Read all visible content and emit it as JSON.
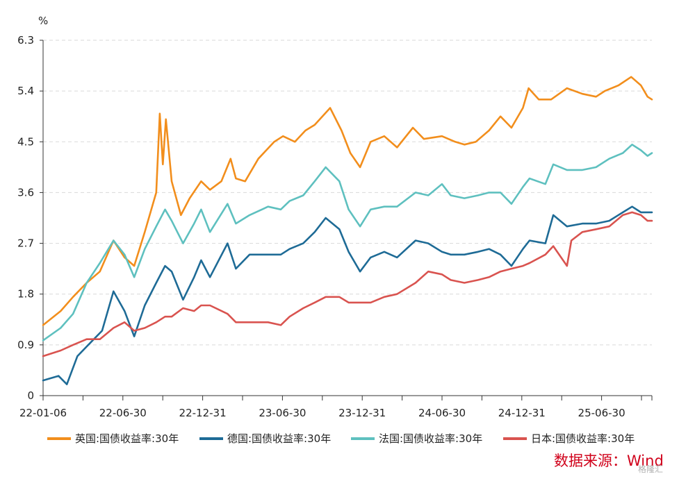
{
  "chart_data": {
    "type": "line",
    "unit_label": "%",
    "ylim": [
      0,
      6.3
    ],
    "yticks": [
      "0",
      "0.9",
      "1.8",
      "2.7",
      "3.6",
      "4.5",
      "5.4",
      "6.3"
    ],
    "xticks": [
      "22-01-06",
      "22-06-30",
      "22-12-31",
      "23-06-30",
      "23-12-31",
      "24-06-30",
      "24-12-31",
      "25-06-30"
    ],
    "xrange": [
      "2022-01-06",
      "2025-10-20"
    ],
    "grid": "horizontal-dashed",
    "legend_position": "bottom",
    "series": [
      {
        "name": "英国:国债收益率:30年",
        "color": "#f28e1c",
        "points": [
          [
            "2022-01-06",
            1.25
          ],
          [
            "2022-02-15",
            1.5
          ],
          [
            "2022-03-15",
            1.75
          ],
          [
            "2022-04-15",
            2.0
          ],
          [
            "2022-05-15",
            2.2
          ],
          [
            "2022-06-15",
            2.75
          ],
          [
            "2022-07-10",
            2.45
          ],
          [
            "2022-08-01",
            2.3
          ],
          [
            "2022-08-25",
            2.9
          ],
          [
            "2022-09-20",
            3.6
          ],
          [
            "2022-09-28",
            5.0
          ],
          [
            "2022-10-05",
            4.1
          ],
          [
            "2022-10-12",
            4.9
          ],
          [
            "2022-10-25",
            3.8
          ],
          [
            "2022-11-15",
            3.2
          ],
          [
            "2022-12-05",
            3.5
          ],
          [
            "2022-12-31",
            3.8
          ],
          [
            "2023-01-20",
            3.65
          ],
          [
            "2023-02-15",
            3.8
          ],
          [
            "2023-03-08",
            4.2
          ],
          [
            "2023-03-20",
            3.85
          ],
          [
            "2023-04-10",
            3.8
          ],
          [
            "2023-05-10",
            4.2
          ],
          [
            "2023-06-15",
            4.5
          ],
          [
            "2023-07-05",
            4.6
          ],
          [
            "2023-08-01",
            4.5
          ],
          [
            "2023-08-25",
            4.7
          ],
          [
            "2023-09-15",
            4.8
          ],
          [
            "2023-10-20",
            5.1
          ],
          [
            "2023-11-15",
            4.7
          ],
          [
            "2023-12-05",
            4.3
          ],
          [
            "2023-12-27",
            4.05
          ],
          [
            "2024-01-20",
            4.5
          ],
          [
            "2024-02-20",
            4.6
          ],
          [
            "2024-03-20",
            4.4
          ],
          [
            "2024-04-25",
            4.75
          ],
          [
            "2024-05-20",
            4.55
          ],
          [
            "2024-06-30",
            4.6
          ],
          [
            "2024-07-30",
            4.5
          ],
          [
            "2024-08-20",
            4.45
          ],
          [
            "2024-09-15",
            4.5
          ],
          [
            "2024-10-15",
            4.7
          ],
          [
            "2024-11-10",
            4.95
          ],
          [
            "2024-12-05",
            4.75
          ],
          [
            "2024-12-31",
            5.1
          ],
          [
            "2025-01-13",
            5.45
          ],
          [
            "2025-02-05",
            5.25
          ],
          [
            "2025-03-05",
            5.25
          ],
          [
            "2025-04-10",
            5.45
          ],
          [
            "2025-05-15",
            5.35
          ],
          [
            "2025-06-15",
            5.3
          ],
          [
            "2025-07-05",
            5.4
          ],
          [
            "2025-08-05",
            5.5
          ],
          [
            "2025-09-03",
            5.65
          ],
          [
            "2025-09-25",
            5.5
          ],
          [
            "2025-10-10",
            5.3
          ],
          [
            "2025-10-20",
            5.25
          ]
        ]
      },
      {
        "name": "德国:国债收益率:30年",
        "color": "#1e6b96",
        "points": [
          [
            "2022-01-06",
            0.27
          ],
          [
            "2022-02-10",
            0.35
          ],
          [
            "2022-03-01",
            0.2
          ],
          [
            "2022-03-25",
            0.7
          ],
          [
            "2022-04-25",
            0.95
          ],
          [
            "2022-05-20",
            1.15
          ],
          [
            "2022-06-15",
            1.85
          ],
          [
            "2022-07-10",
            1.5
          ],
          [
            "2022-08-01",
            1.05
          ],
          [
            "2022-08-25",
            1.6
          ],
          [
            "2022-09-20",
            2.0
          ],
          [
            "2022-10-10",
            2.3
          ],
          [
            "2022-10-25",
            2.2
          ],
          [
            "2022-11-20",
            1.7
          ],
          [
            "2022-12-15",
            2.1
          ],
          [
            "2022-12-31",
            2.4
          ],
          [
            "2023-01-20",
            2.1
          ],
          [
            "2023-03-01",
            2.7
          ],
          [
            "2023-03-20",
            2.25
          ],
          [
            "2023-04-20",
            2.5
          ],
          [
            "2023-06-01",
            2.5
          ],
          [
            "2023-06-30",
            2.5
          ],
          [
            "2023-07-20",
            2.6
          ],
          [
            "2023-08-20",
            2.7
          ],
          [
            "2023-09-15",
            2.9
          ],
          [
            "2023-10-10",
            3.15
          ],
          [
            "2023-11-10",
            2.95
          ],
          [
            "2023-12-01",
            2.55
          ],
          [
            "2023-12-27",
            2.2
          ],
          [
            "2024-01-20",
            2.45
          ],
          [
            "2024-02-20",
            2.55
          ],
          [
            "2024-03-20",
            2.45
          ],
          [
            "2024-05-01",
            2.75
          ],
          [
            "2024-05-30",
            2.7
          ],
          [
            "2024-06-30",
            2.55
          ],
          [
            "2024-07-20",
            2.5
          ],
          [
            "2024-08-20",
            2.5
          ],
          [
            "2024-09-20",
            2.55
          ],
          [
            "2024-10-15",
            2.6
          ],
          [
            "2024-11-10",
            2.5
          ],
          [
            "2024-12-05",
            2.3
          ],
          [
            "2024-12-31",
            2.6
          ],
          [
            "2025-01-15",
            2.75
          ],
          [
            "2025-02-20",
            2.7
          ],
          [
            "2025-03-10",
            3.2
          ],
          [
            "2025-04-10",
            3.0
          ],
          [
            "2025-05-15",
            3.05
          ],
          [
            "2025-06-15",
            3.05
          ],
          [
            "2025-07-15",
            3.1
          ],
          [
            "2025-08-15",
            3.25
          ],
          [
            "2025-09-05",
            3.35
          ],
          [
            "2025-09-25",
            3.25
          ],
          [
            "2025-10-20",
            3.25
          ]
        ]
      },
      {
        "name": "法国:国债收益率:30年",
        "color": "#5ec0bf",
        "points": [
          [
            "2022-01-06",
            0.98
          ],
          [
            "2022-02-15",
            1.2
          ],
          [
            "2022-03-15",
            1.45
          ],
          [
            "2022-04-15",
            2.0
          ],
          [
            "2022-05-15",
            2.35
          ],
          [
            "2022-06-15",
            2.75
          ],
          [
            "2022-07-10",
            2.5
          ],
          [
            "2022-08-01",
            2.1
          ],
          [
            "2022-08-25",
            2.6
          ],
          [
            "2022-09-20",
            3.0
          ],
          [
            "2022-10-10",
            3.3
          ],
          [
            "2022-10-25",
            3.1
          ],
          [
            "2022-11-20",
            2.7
          ],
          [
            "2022-12-15",
            3.05
          ],
          [
            "2022-12-31",
            3.3
          ],
          [
            "2023-01-20",
            2.9
          ],
          [
            "2023-03-01",
            3.4
          ],
          [
            "2023-03-20",
            3.05
          ],
          [
            "2023-04-20",
            3.2
          ],
          [
            "2023-06-01",
            3.35
          ],
          [
            "2023-06-30",
            3.3
          ],
          [
            "2023-07-20",
            3.45
          ],
          [
            "2023-08-20",
            3.55
          ],
          [
            "2023-09-15",
            3.8
          ],
          [
            "2023-10-10",
            4.05
          ],
          [
            "2023-11-10",
            3.8
          ],
          [
            "2023-12-01",
            3.3
          ],
          [
            "2023-12-27",
            3.0
          ],
          [
            "2024-01-20",
            3.3
          ],
          [
            "2024-02-20",
            3.35
          ],
          [
            "2024-03-20",
            3.35
          ],
          [
            "2024-05-01",
            3.6
          ],
          [
            "2024-05-30",
            3.55
          ],
          [
            "2024-06-30",
            3.75
          ],
          [
            "2024-07-20",
            3.55
          ],
          [
            "2024-08-20",
            3.5
          ],
          [
            "2024-09-20",
            3.55
          ],
          [
            "2024-10-15",
            3.6
          ],
          [
            "2024-11-10",
            3.6
          ],
          [
            "2024-12-05",
            3.4
          ],
          [
            "2024-12-31",
            3.7
          ],
          [
            "2025-01-15",
            3.85
          ],
          [
            "2025-02-20",
            3.75
          ],
          [
            "2025-03-10",
            4.1
          ],
          [
            "2025-04-10",
            4.0
          ],
          [
            "2025-05-15",
            4.0
          ],
          [
            "2025-06-15",
            4.05
          ],
          [
            "2025-07-15",
            4.2
          ],
          [
            "2025-08-15",
            4.3
          ],
          [
            "2025-09-05",
            4.45
          ],
          [
            "2025-09-25",
            4.35
          ],
          [
            "2025-10-10",
            4.25
          ],
          [
            "2025-10-20",
            4.3
          ]
        ]
      },
      {
        "name": "日本:国债收益率:30年",
        "color": "#d9534f",
        "points": [
          [
            "2022-01-06",
            0.7
          ],
          [
            "2022-02-15",
            0.8
          ],
          [
            "2022-03-15",
            0.9
          ],
          [
            "2022-04-15",
            1.0
          ],
          [
            "2022-05-15",
            1.0
          ],
          [
            "2022-06-15",
            1.2
          ],
          [
            "2022-07-10",
            1.3
          ],
          [
            "2022-08-01",
            1.15
          ],
          [
            "2022-08-25",
            1.2
          ],
          [
            "2022-09-20",
            1.3
          ],
          [
            "2022-10-10",
            1.4
          ],
          [
            "2022-10-25",
            1.4
          ],
          [
            "2022-11-20",
            1.55
          ],
          [
            "2022-12-15",
            1.5
          ],
          [
            "2022-12-31",
            1.6
          ],
          [
            "2023-01-20",
            1.6
          ],
          [
            "2023-03-01",
            1.45
          ],
          [
            "2023-03-20",
            1.3
          ],
          [
            "2023-04-20",
            1.3
          ],
          [
            "2023-06-01",
            1.3
          ],
          [
            "2023-06-30",
            1.25
          ],
          [
            "2023-07-20",
            1.4
          ],
          [
            "2023-08-20",
            1.55
          ],
          [
            "2023-09-15",
            1.65
          ],
          [
            "2023-10-10",
            1.75
          ],
          [
            "2023-11-10",
            1.75
          ],
          [
            "2023-12-01",
            1.65
          ],
          [
            "2023-12-27",
            1.65
          ],
          [
            "2024-01-20",
            1.65
          ],
          [
            "2024-02-20",
            1.75
          ],
          [
            "2024-03-20",
            1.8
          ],
          [
            "2024-05-01",
            2.0
          ],
          [
            "2024-05-30",
            2.2
          ],
          [
            "2024-06-30",
            2.15
          ],
          [
            "2024-07-20",
            2.05
          ],
          [
            "2024-08-20",
            2.0
          ],
          [
            "2024-09-20",
            2.05
          ],
          [
            "2024-10-15",
            2.1
          ],
          [
            "2024-11-10",
            2.2
          ],
          [
            "2024-12-05",
            2.25
          ],
          [
            "2024-12-31",
            2.3
          ],
          [
            "2025-01-15",
            2.35
          ],
          [
            "2025-02-20",
            2.5
          ],
          [
            "2025-03-10",
            2.65
          ],
          [
            "2025-04-10",
            2.3
          ],
          [
            "2025-04-20",
            2.75
          ],
          [
            "2025-05-15",
            2.9
          ],
          [
            "2025-06-15",
            2.95
          ],
          [
            "2025-07-15",
            3.0
          ],
          [
            "2025-08-15",
            3.2
          ],
          [
            "2025-09-05",
            3.25
          ],
          [
            "2025-09-25",
            3.2
          ],
          [
            "2025-10-10",
            3.1
          ],
          [
            "2025-10-20",
            3.1
          ]
        ]
      }
    ]
  },
  "source_text": "数据来源：Wind",
  "watermark_text": "格隆汇"
}
